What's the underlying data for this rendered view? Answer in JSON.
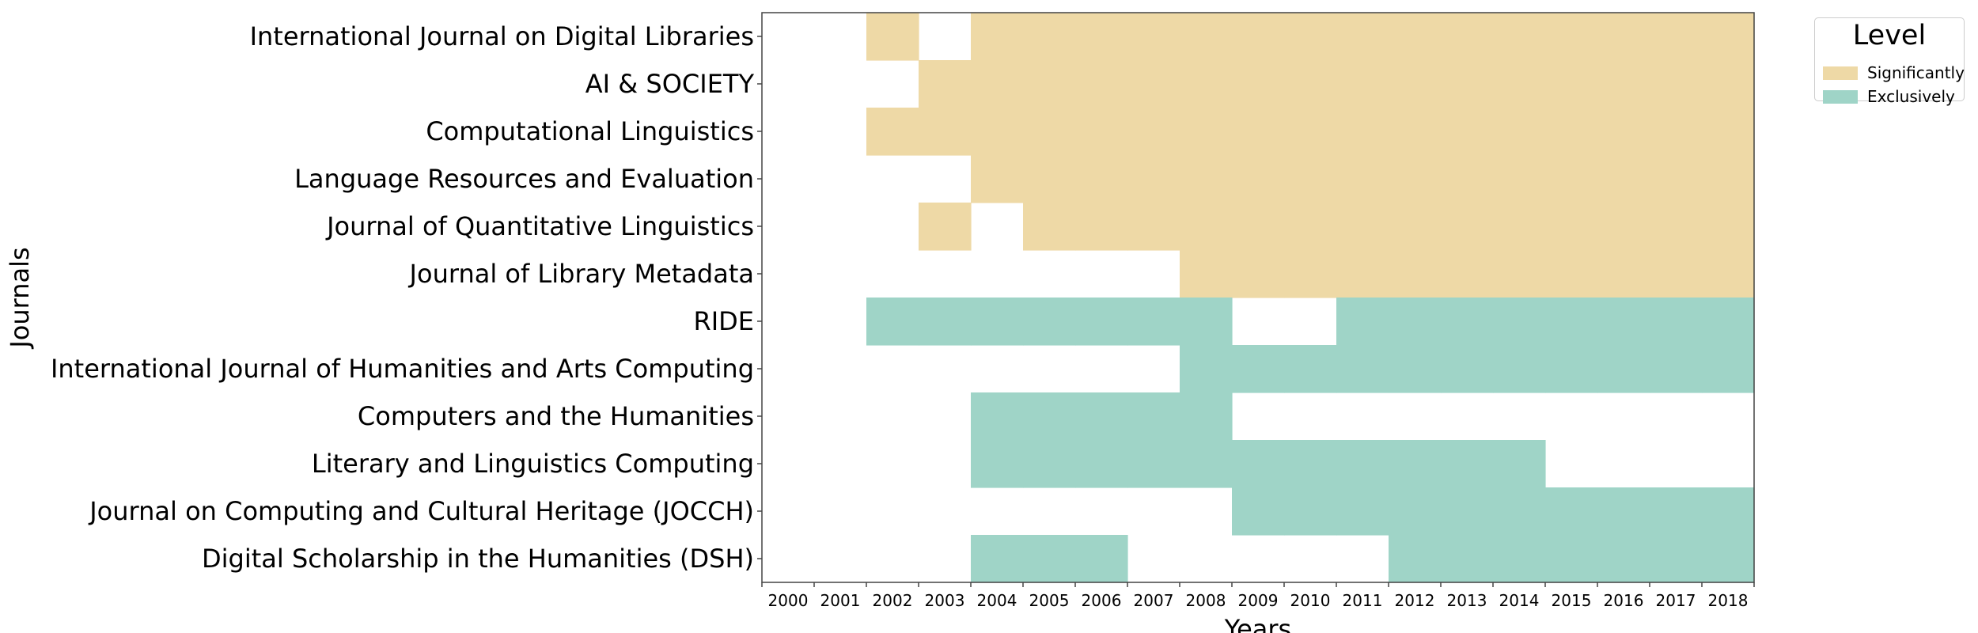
{
  "chart_data": {
    "type": "heatmap",
    "title": "",
    "xlabel": "Years",
    "ylabel": "Journals",
    "x": [
      "2000",
      "2001",
      "2002",
      "2003",
      "2004",
      "2005",
      "2006",
      "2007",
      "2008",
      "2009",
      "2010",
      "2011",
      "2012",
      "2013",
      "2014",
      "2015",
      "2016",
      "2017",
      "2018"
    ],
    "y": [
      "International Journal on Digital Libraries",
      "AI & SOCIETY",
      "Computational Linguistics",
      "Language Resources and Evaluation",
      "Journal of Quantitative Linguistics",
      "Journal of Library Metadata",
      "RIDE",
      "International Journal of Humanities and Arts Computing",
      "Computers and the Humanities",
      "Literary and Linguistics Computing",
      "Journal on Computing and Cultural Heritage (JOCCH)",
      "Digital Scholarship in the Humanities (DSH)"
    ],
    "levels": [
      "",
      "Significantly",
      "Exclusively"
    ],
    "values": [
      [
        0,
        0,
        1,
        0,
        1,
        1,
        1,
        1,
        1,
        1,
        1,
        1,
        1,
        1,
        1,
        1,
        1,
        1,
        1
      ],
      [
        0,
        0,
        0,
        1,
        1,
        1,
        1,
        1,
        1,
        1,
        1,
        1,
        1,
        1,
        1,
        1,
        1,
        1,
        1
      ],
      [
        0,
        0,
        1,
        1,
        1,
        1,
        1,
        1,
        1,
        1,
        1,
        1,
        1,
        1,
        1,
        1,
        1,
        1,
        1
      ],
      [
        0,
        0,
        0,
        0,
        1,
        1,
        1,
        1,
        1,
        1,
        1,
        1,
        1,
        1,
        1,
        1,
        1,
        1,
        1
      ],
      [
        0,
        0,
        0,
        1,
        0,
        1,
        1,
        1,
        1,
        1,
        1,
        1,
        1,
        1,
        1,
        1,
        1,
        1,
        1
      ],
      [
        0,
        0,
        0,
        0,
        0,
        0,
        0,
        0,
        1,
        1,
        1,
        1,
        1,
        1,
        1,
        1,
        1,
        1,
        1
      ],
      [
        0,
        0,
        2,
        2,
        2,
        2,
        2,
        2,
        2,
        0,
        0,
        2,
        2,
        2,
        2,
        2,
        2,
        2,
        2
      ],
      [
        0,
        0,
        0,
        0,
        0,
        0,
        0,
        0,
        2,
        2,
        2,
        2,
        2,
        2,
        2,
        2,
        2,
        2,
        2
      ],
      [
        0,
        0,
        0,
        0,
        2,
        2,
        2,
        2,
        2,
        0,
        0,
        0,
        0,
        0,
        0,
        0,
        0,
        0,
        0
      ],
      [
        0,
        0,
        0,
        0,
        2,
        2,
        2,
        2,
        2,
        2,
        2,
        2,
        2,
        2,
        2,
        0,
        0,
        0,
        0
      ],
      [
        0,
        0,
        0,
        0,
        0,
        0,
        0,
        0,
        0,
        2,
        2,
        2,
        2,
        2,
        2,
        2,
        2,
        2,
        2
      ],
      [
        0,
        0,
        0,
        0,
        2,
        2,
        2,
        0,
        0,
        0,
        0,
        0,
        2,
        2,
        2,
        2,
        2,
        2,
        2
      ]
    ],
    "colors": {
      "Significantly": "#eed9a6",
      "Exclusively": "#9fd4c7"
    },
    "grid": false,
    "legend_title": "Level",
    "legend_position": "top-right outside"
  }
}
